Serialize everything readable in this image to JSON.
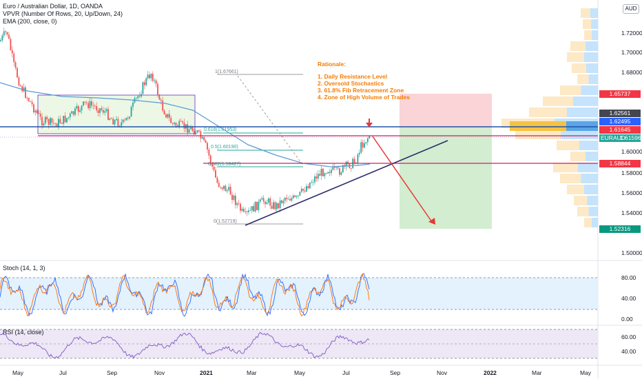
{
  "legend": {
    "title": "Euro / Australian Dollar, 1D, OANDA",
    "vpvr": "VPVR (Number Of Rows, 20, Up/Down, 24)",
    "ema": "EMA (200, close, 0)",
    "stoch": "Stoch (14, 1, 3)",
    "rsi": "RSI (14, close)"
  },
  "currency_badge": "AUD",
  "rationale": {
    "heading": "Rationale:",
    "items": [
      "1. Daily Resistance Level",
      "2. Oversold Stochastics",
      "3. 61.8% Fib Retracement Zone",
      "4. Zone of High Volume of Trades"
    ]
  },
  "fib_labels": {
    "l1": "1(1.67661)",
    "l618": "0.618(1.61953)",
    "l5": "0.5(1.60190)",
    "l382": "0.382(1.58427)",
    "l0": "0(1.52719)"
  },
  "price_axis": {
    "ticks": [
      "1.72000",
      "1.70000",
      "1.68000",
      "1.60000",
      "1.58000",
      "1.56000",
      "1.54000",
      "1.50000"
    ],
    "tags": [
      {
        "text": "1.65737",
        "color": "#f23645"
      },
      {
        "text": "1.62561",
        "color": "#434651"
      },
      {
        "text": "1.62495",
        "color": "#2962ff"
      },
      {
        "text": "1.61645",
        "color": "#f23645"
      },
      {
        "text": "EURAUD",
        "value": "1.61596",
        "color": "#26a69a"
      },
      {
        "text": "1.58844",
        "color": "#f23645"
      },
      {
        "text": "1.52316",
        "color": "#089981"
      }
    ]
  },
  "stoch_axis": [
    "80.00",
    "40.00",
    "0.00"
  ],
  "rsi_axis": [
    "60.00",
    "40.00"
  ],
  "time_axis": [
    "May",
    "Jul",
    "Sep",
    "Nov",
    "2021",
    "Mar",
    "May",
    "Jul",
    "Sep",
    "Nov",
    "2022",
    "Mar",
    "May"
  ],
  "colors": {
    "up": "#26a69a",
    "down": "#ef5350",
    "ema": "#5b9bd5",
    "resistance": "#1e53a8",
    "support_line": "#d81b60",
    "trendline": "#2b2b6b",
    "arrow": "#e53935"
  }
}
